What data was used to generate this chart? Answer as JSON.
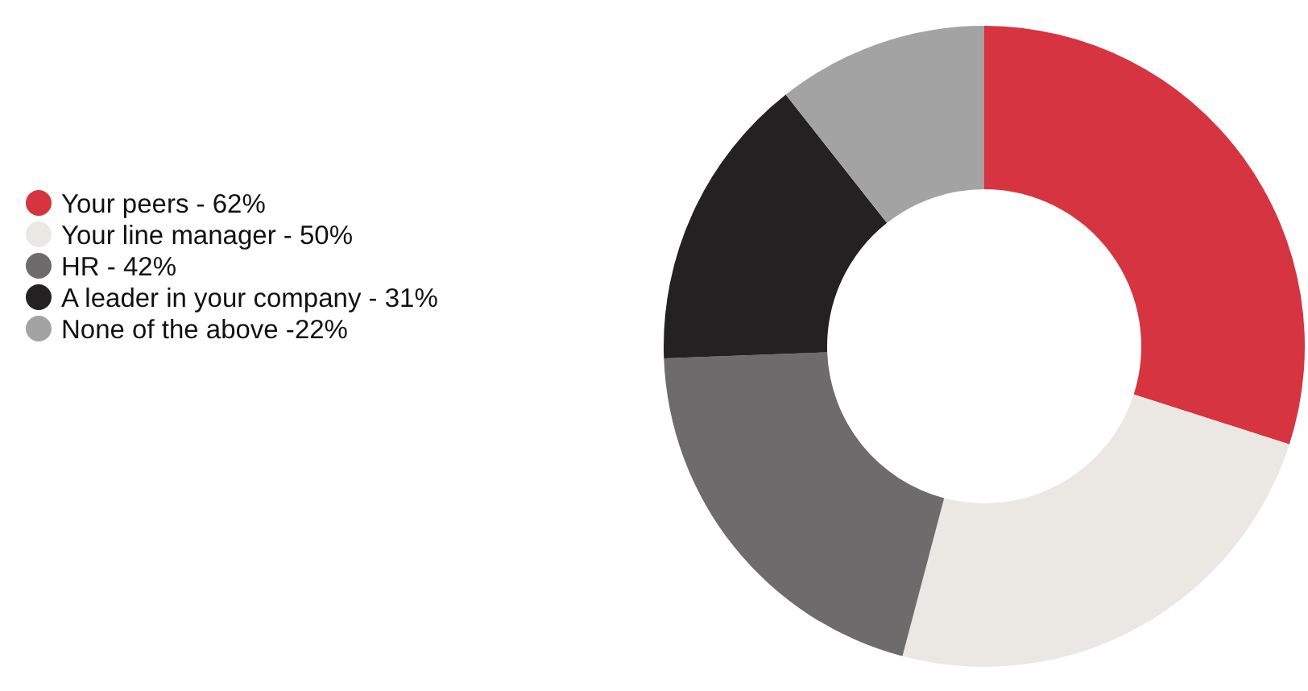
{
  "chart_data": {
    "type": "donut",
    "categories": [
      "Your peers - ",
      "Your line manager - ",
      "HR - ",
      "A leader in your company - ",
      "None of the above -"
    ],
    "values": [
      62,
      50,
      42,
      31,
      22
    ],
    "value_labels": [
      "62%",
      "50%",
      "42%",
      "31%",
      "22%"
    ],
    "colors": [
      "#d63440",
      "#ebe7e3",
      "#6d6b6c",
      "#232122",
      "#a3a3a3"
    ],
    "legend": "left"
  }
}
